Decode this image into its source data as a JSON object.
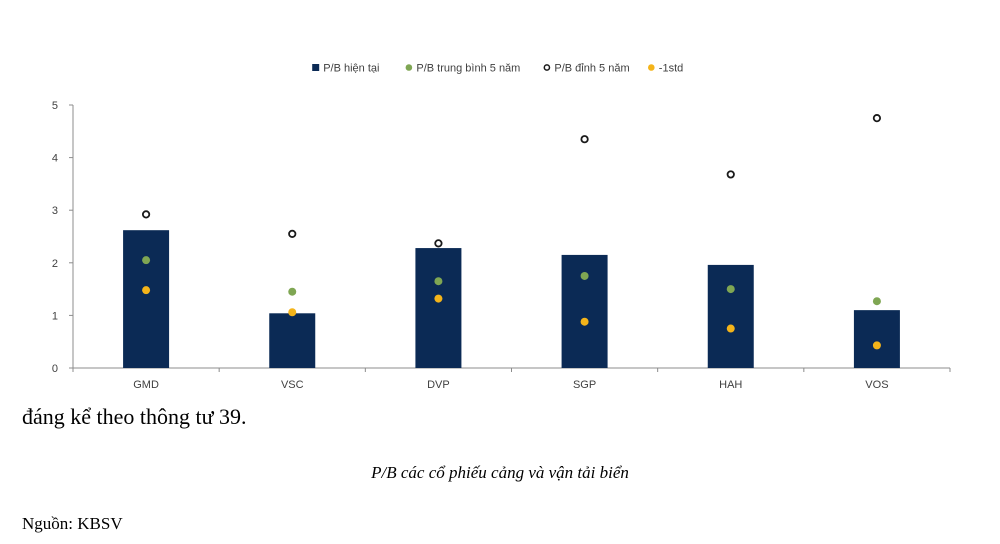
{
  "chart_data": {
    "type": "bar",
    "categories": [
      "GMD",
      "VSC",
      "DVP",
      "SGP",
      "HAH",
      "VOS"
    ],
    "series": [
      {
        "name": "P/B hiện tại",
        "kind": "bar",
        "color": "#0b2a55",
        "values": [
          2.62,
          1.04,
          2.28,
          2.15,
          1.96,
          1.1
        ]
      },
      {
        "name": "P/B trung bình 5 năm",
        "kind": "dot",
        "color": "#7fa653",
        "values": [
          2.05,
          1.45,
          1.65,
          1.75,
          1.5,
          1.27
        ]
      },
      {
        "name": "P/B đỉnh 5 năm",
        "kind": "ring",
        "color": "#1a1a1a",
        "values": [
          2.92,
          2.55,
          2.37,
          4.35,
          3.68,
          4.75
        ]
      },
      {
        "name": "-1std",
        "kind": "dot",
        "color": "#f4b41a",
        "values": [
          1.48,
          1.06,
          1.32,
          0.88,
          0.75,
          0.43
        ]
      }
    ],
    "y_ticks": [
      "0",
      "1",
      "2",
      "3",
      "4",
      "5"
    ],
    "ylim": [
      0,
      5
    ],
    "grid": false,
    "legend_position": "top-center"
  },
  "text": {
    "body_line": "đáng kể theo thông tư 39.",
    "caption": "P/B các cổ phiếu cảng và vận tải biển",
    "source": "Nguồn: KBSV"
  }
}
